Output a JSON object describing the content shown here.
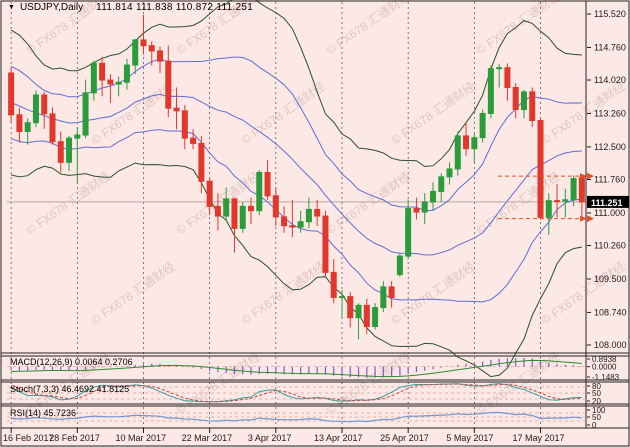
{
  "window": {
    "symbol": "USDJPY,Daily",
    "quote": "111.814 111.838 110.872 111.251"
  },
  "icons": {
    "symbol_dropdown": "▼"
  },
  "watermark": {
    "text": "© FX678 汇通财经"
  },
  "colors": {
    "background": "#fce8e5",
    "bull": "#2b9c3c",
    "bear": "#e0382c",
    "band_outer": "#2a512a",
    "band_inner": "#5e6ed6",
    "grid": "#4a4a4a",
    "border": "#222222",
    "current_price_line": "#b3a9a6",
    "alert_line": "#e8502a",
    "macd_hist": "#7d5bd0",
    "macd_signal": "#2e8b2e",
    "stoch_k": "#35a0a0",
    "stoch_d": "#cc4444",
    "rsi": "#7096d8",
    "panel_grid": "#dfa099",
    "text": "#1c1c1c",
    "watermark": "rgba(155,120,112,0.30)",
    "badge_bg": "#000000",
    "badge_text": "#ffffff"
  },
  "chart_data": {
    "type": "candlestick",
    "title": "USDJPY,Daily",
    "timeframe": "Daily",
    "last_quote": {
      "open": "111.814",
      "high": "111.838",
      "low": "110.872",
      "close": "111.251"
    },
    "ylim": [
      108.0,
      115.52
    ],
    "y_tick_labels": [
      "115.520",
      "114.760",
      "114.020",
      "113.260",
      "112.500",
      "111.760",
      "111.000",
      "110.260",
      "109.500",
      "108.740",
      "108.000"
    ],
    "current_price_label": "111.251",
    "current_close": 111.251,
    "levels": {
      "high_line": 111.838,
      "low_line": 110.872
    },
    "x_tick_labels": [
      "16 Feb 2017",
      "28 Feb 2017",
      "10 Mar 2017",
      "22 Mar 2017",
      "3 Apr 2017",
      "13 Apr 2017",
      "25 Apr 2017",
      "5 May 2017",
      "17 May 2017"
    ],
    "x_tick_indices": [
      0,
      8,
      16,
      24,
      32,
      40,
      48,
      56,
      64
    ],
    "overlay": {
      "name": "Bollinger Bands",
      "period": 20,
      "outer_dev": 2,
      "inner_dev": 1
    },
    "warmup_close": [
      115.1,
      114.45,
      114.75,
      115.05,
      114.55,
      113.95,
      113.25,
      113.6,
      112.6,
      112.75,
      113.9,
      113.25,
      113.4,
      112.1,
      112.4,
      112.2,
      113.4,
      113.3,
      113.75,
      114.3
    ],
    "candles": {
      "open": [
        114.18,
        113.23,
        112.85,
        113.05,
        113.68,
        113.25,
        112.62,
        112.15,
        112.7,
        112.77,
        113.73,
        114.4,
        114.02,
        113.93,
        113.97,
        114.36,
        114.93,
        114.8,
        114.68,
        114.45,
        113.38,
        113.32,
        112.7,
        112.58,
        111.72,
        111.15,
        110.93,
        111.32,
        110.65,
        111.15,
        111.05,
        111.92,
        111.39,
        110.91,
        110.71,
        110.68,
        110.8,
        111.08,
        110.93,
        109.65,
        109.08,
        109.1,
        108.62,
        108.9,
        108.42,
        108.85,
        109.32,
        109.6,
        110.02,
        111.1,
        111.02,
        111.25,
        111.49,
        111.82,
        112.0,
        112.75,
        112.46,
        112.71,
        113.26,
        114.28,
        114.3,
        113.85,
        113.35,
        113.75,
        113.1,
        110.9,
        111.28,
        111.27,
        111.3,
        111.81
      ],
      "high": [
        114.3,
        113.39,
        113.15,
        113.78,
        113.75,
        113.4,
        112.85,
        112.75,
        112.95,
        114.03,
        114.45,
        114.55,
        114.15,
        114.1,
        114.5,
        114.95,
        115.5,
        114.9,
        114.78,
        114.8,
        113.85,
        113.45,
        112.9,
        112.75,
        111.78,
        111.45,
        111.58,
        111.35,
        111.25,
        111.35,
        111.98,
        112.2,
        111.58,
        111.15,
        111.3,
        111.05,
        111.35,
        111.3,
        111.05,
        109.95,
        109.25,
        109.2,
        108.95,
        109.05,
        108.95,
        109.45,
        109.45,
        110.1,
        111.3,
        111.35,
        111.45,
        111.7,
        111.9,
        112.15,
        112.85,
        113.05,
        112.8,
        113.35,
        114.35,
        114.38,
        114.4,
        113.95,
        113.8,
        113.85,
        113.15,
        111.45,
        111.65,
        111.55,
        111.85,
        111.84
      ],
      "low": [
        113.05,
        112.6,
        112.55,
        112.95,
        112.91,
        112.55,
        111.92,
        111.95,
        111.68,
        112.7,
        113.55,
        113.65,
        113.5,
        113.65,
        113.8,
        114.15,
        114.6,
        114.35,
        114.18,
        113.18,
        112.9,
        112.45,
        112.45,
        111.45,
        110.95,
        110.6,
        110.85,
        110.1,
        110.55,
        110.75,
        110.95,
        111.3,
        110.7,
        110.55,
        110.45,
        110.55,
        110.65,
        110.7,
        109.55,
        108.95,
        108.6,
        108.4,
        108.13,
        108.25,
        108.35,
        108.75,
        108.85,
        109.55,
        109.95,
        110.85,
        110.75,
        111.05,
        111.25,
        111.65,
        111.85,
        112.3,
        112.15,
        112.6,
        113.15,
        113.85,
        113.55,
        113.15,
        113.15,
        112.95,
        110.85,
        110.5,
        110.9,
        110.9,
        111.15,
        110.87
      ],
      "close": [
        113.23,
        112.85,
        113.05,
        113.68,
        113.25,
        112.62,
        112.15,
        112.7,
        112.77,
        113.73,
        114.4,
        114.02,
        113.93,
        113.97,
        114.36,
        114.93,
        114.8,
        114.68,
        114.45,
        113.38,
        113.32,
        112.7,
        112.58,
        111.72,
        111.15,
        110.93,
        111.32,
        110.65,
        111.15,
        111.05,
        111.92,
        111.39,
        110.91,
        110.71,
        110.68,
        110.8,
        111.08,
        110.93,
        109.65,
        109.08,
        109.1,
        108.62,
        108.9,
        108.42,
        108.85,
        109.32,
        109.08,
        110.02,
        111.1,
        111.02,
        111.25,
        111.49,
        111.82,
        112.0,
        112.75,
        112.46,
        112.71,
        113.26,
        114.28,
        114.3,
        113.85,
        113.35,
        113.75,
        113.1,
        110.9,
        111.28,
        111.27,
        111.3,
        111.78,
        111.25
      ]
    },
    "indicators": [
      {
        "name": "macd",
        "label": "MACD(12,26,9) 0.0064 0.2706",
        "params": [
          12,
          26,
          9
        ],
        "axis_labels": [
          "0.8938",
          "0.0000",
          "-1.1483"
        ],
        "scale": [
          -1.1483,
          0.8938
        ]
      },
      {
        "name": "stoch",
        "label": "Stoch(7,3,3) 46.4692 41.8125",
        "params": [
          7,
          3,
          3
        ],
        "axis_labels": [
          "80",
          "50",
          "20"
        ],
        "grid_levels": [
          80,
          50,
          20
        ],
        "scale": [
          0,
          100
        ]
      },
      {
        "name": "rsi",
        "label": "RSI(14) 45.7236",
        "params": [
          14
        ],
        "axis_labels": [
          "100",
          "50",
          "0"
        ],
        "grid_levels": [
          70,
          50,
          30
        ],
        "scale": [
          0,
          100
        ]
      }
    ]
  }
}
